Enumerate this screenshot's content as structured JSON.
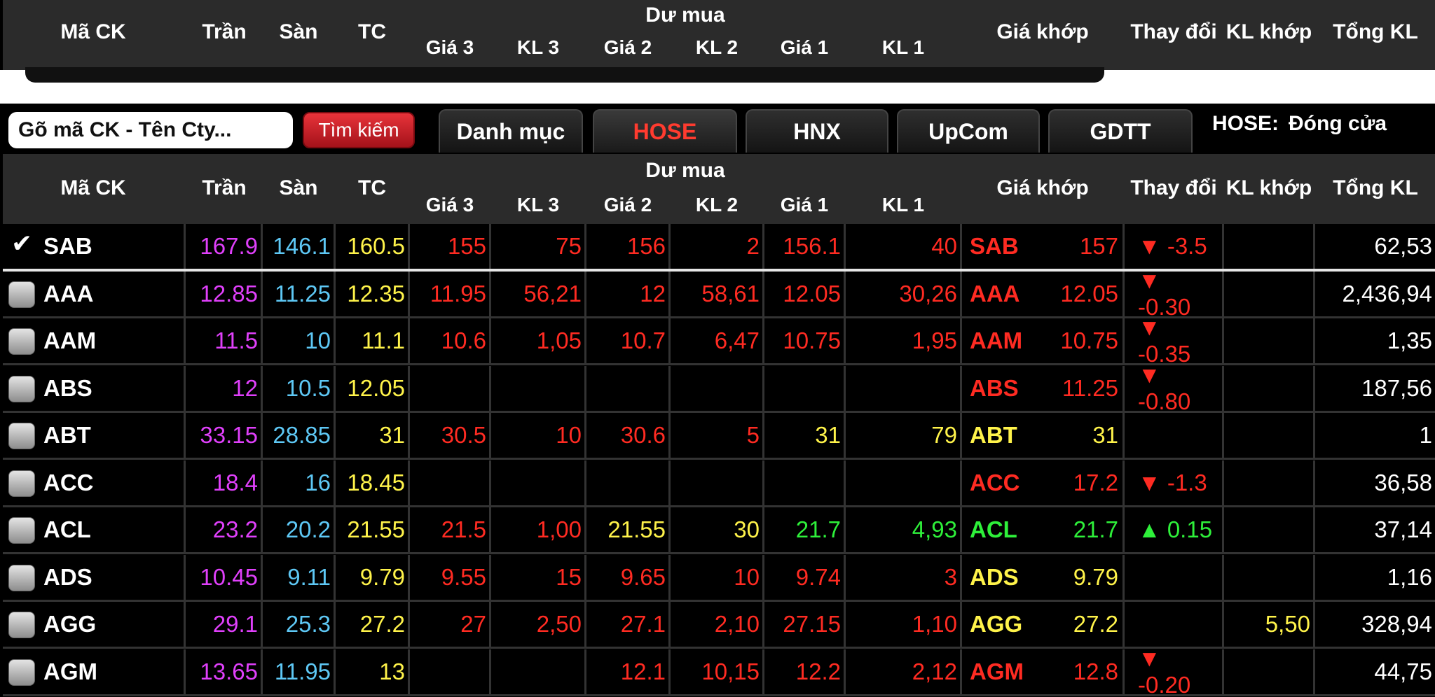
{
  "columns": {
    "symbol": "Mã CK",
    "ceiling": "Trần",
    "floor": "Sàn",
    "reference": "TC",
    "bid_group": "Dư mua",
    "bid_sub": [
      "Giá 3",
      "KL 3",
      "Giá 2",
      "KL 2",
      "Giá 1",
      "KL 1"
    ],
    "match_price": "Giá khớp",
    "change": "Thay đổi",
    "match_volume": "KL khớp",
    "total_volume": "Tổng KL"
  },
  "toolbar": {
    "search_placeholder": "Gõ mã CK - Tên Cty...",
    "search_button": "Tìm kiếm",
    "tabs": [
      "Danh mục",
      "HOSE",
      "HNX",
      "UpCom",
      "GDTT"
    ],
    "active_tab": "HOSE",
    "status_label": "HOSE:",
    "status_value": "Đóng cửa"
  },
  "colors": {
    "ceiling": "#e040fb",
    "floor": "#5ec8f5",
    "reference": "#fff34a",
    "down": "#ff2b22",
    "up": "#2ef03a"
  },
  "rows": [
    {
      "sym": "SAB",
      "checked": true,
      "tran": "167.9",
      "san": "146.1",
      "tc": "160.5",
      "g3": "155",
      "kl3": "75",
      "g2": "156",
      "kl2": "2",
      "g1": "156.1",
      "kl1": "40",
      "mp": "157",
      "chg": "▼ -3.5",
      "klk": "",
      "tkl": "62,53",
      "dir": "down"
    },
    {
      "sym": "AAA",
      "checked": false,
      "tran": "12.85",
      "san": "11.25",
      "tc": "12.35",
      "g3": "11.95",
      "kl3": "56,21",
      "g2": "12",
      "kl2": "58,61",
      "g1": "12.05",
      "kl1": "30,26",
      "mp": "12.05",
      "chg": "▼ -0.30",
      "klk": "",
      "tkl": "2,436,94",
      "dir": "down"
    },
    {
      "sym": "AAM",
      "checked": false,
      "tran": "11.5",
      "san": "10",
      "tc": "11.1",
      "g3": "10.6",
      "kl3": "1,05",
      "g2": "10.7",
      "kl2": "6,47",
      "g1": "10.75",
      "kl1": "1,95",
      "mp": "10.75",
      "chg": "▼ -0.35",
      "klk": "",
      "tkl": "1,35",
      "dir": "down"
    },
    {
      "sym": "ABS",
      "checked": false,
      "tran": "12",
      "san": "10.5",
      "tc": "12.05",
      "g3": "",
      "kl3": "",
      "g2": "",
      "kl2": "",
      "g1": "",
      "kl1": "",
      "mp": "11.25",
      "chg": "▼ -0.80",
      "klk": "",
      "tkl": "187,56",
      "dir": "down"
    },
    {
      "sym": "ABT",
      "checked": false,
      "tran": "33.15",
      "san": "28.85",
      "tc": "31",
      "g3": "30.5",
      "kl3": "10",
      "g2": "30.6",
      "kl2": "5",
      "g1": "31",
      "kl1": "79",
      "mp": "31",
      "chg": "",
      "klk": "",
      "tkl": "1",
      "dir": "ref"
    },
    {
      "sym": "ACC",
      "checked": false,
      "tran": "18.4",
      "san": "16",
      "tc": "18.45",
      "g3": "",
      "kl3": "",
      "g2": "",
      "kl2": "",
      "g1": "",
      "kl1": "",
      "mp": "17.2",
      "chg": "▼ -1.3",
      "klk": "",
      "tkl": "36,58",
      "dir": "down"
    },
    {
      "sym": "ACL",
      "checked": false,
      "tran": "23.2",
      "san": "20.2",
      "tc": "21.55",
      "g3": "21.5",
      "kl3": "1,00",
      "g2": "21.55",
      "kl2": "30",
      "g1": "21.7",
      "kl1": "4,93",
      "mp": "21.7",
      "chg": "▲ 0.15",
      "klk": "",
      "tkl": "37,14",
      "dir": "up"
    },
    {
      "sym": "ADS",
      "checked": false,
      "tran": "10.45",
      "san": "9.11",
      "tc": "9.79",
      "g3": "9.55",
      "kl3": "15",
      "g2": "9.65",
      "kl2": "10",
      "g1": "9.74",
      "kl1": "3",
      "mp": "9.79",
      "chg": "",
      "klk": "",
      "tkl": "1,16",
      "dir": "ref"
    },
    {
      "sym": "AGG",
      "checked": false,
      "tran": "29.1",
      "san": "25.3",
      "tc": "27.2",
      "g3": "27",
      "kl3": "2,50",
      "g2": "27.1",
      "kl2": "2,10",
      "g1": "27.15",
      "kl1": "1,10",
      "mp": "27.2",
      "chg": "",
      "klk": "5,50",
      "tkl": "328,94",
      "dir": "ref"
    },
    {
      "sym": "AGM",
      "checked": false,
      "tran": "13.65",
      "san": "11.95",
      "tc": "13",
      "g3": "",
      "kl3": "",
      "g2": "12.1",
      "kl2": "10,15",
      "g1": "12.2",
      "kl1": "2,12",
      "mp": "12.8",
      "chg": "▼ -0.20",
      "klk": "",
      "tkl": "44,75",
      "dir": "down"
    }
  ]
}
